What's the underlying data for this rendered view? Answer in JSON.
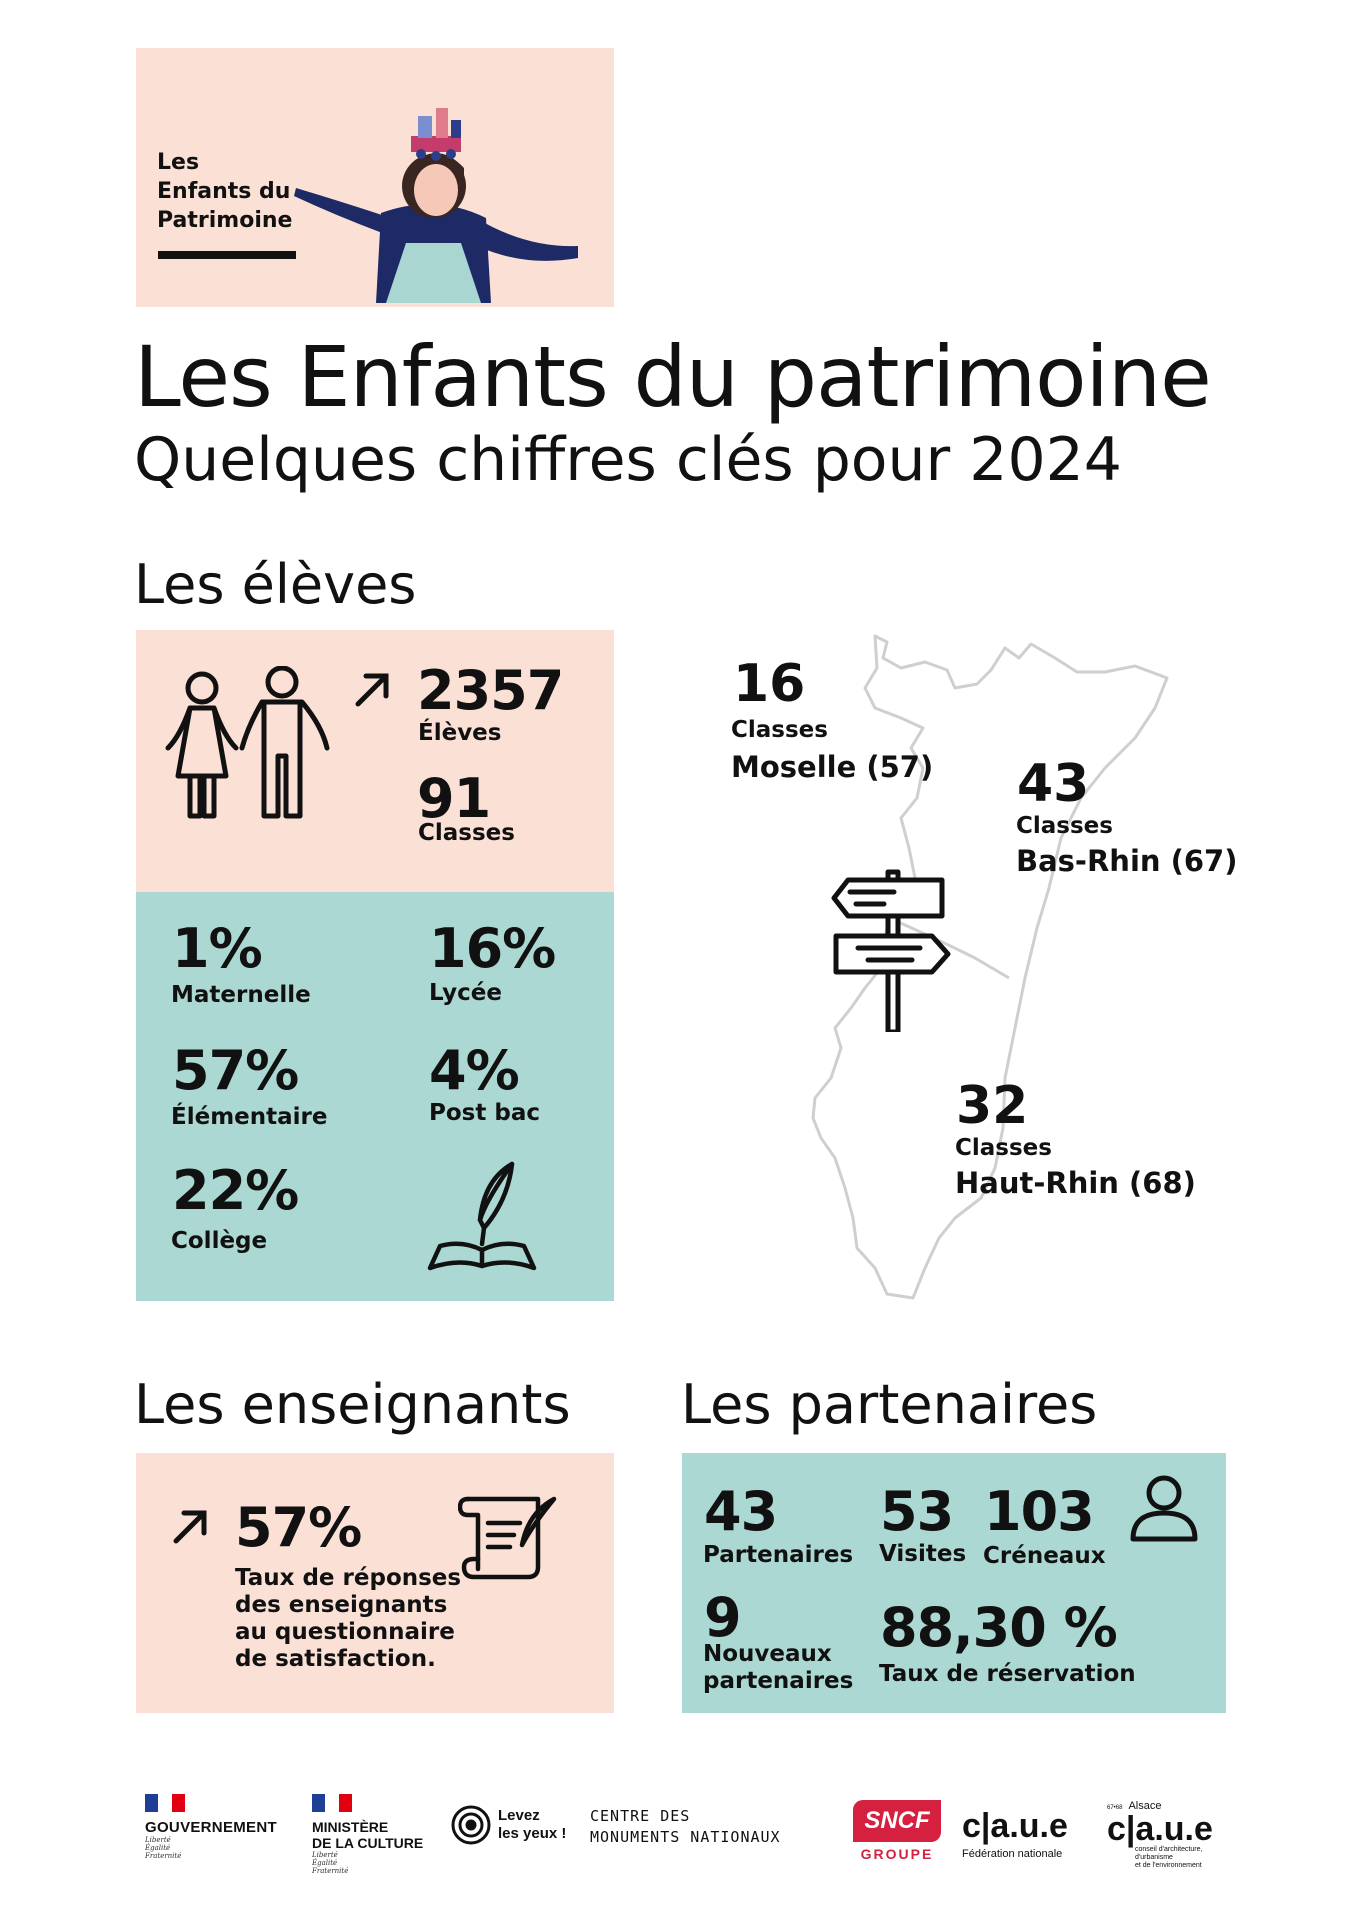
{
  "banner": {
    "line1": "Les",
    "line2": "Enfants du",
    "line3": "Patrimoine"
  },
  "header": {
    "title": "Les Enfants du patrimoine",
    "subtitle": "Quelques chiffres clés pour 2024"
  },
  "eleves": {
    "heading": "Les élèves",
    "students_count": "2357",
    "students_label": "Élèves",
    "classes_count": "91",
    "classes_label": "Classes",
    "levels": [
      {
        "value": "1%",
        "label": "Maternelle"
      },
      {
        "value": "16%",
        "label": "Lycée"
      },
      {
        "value": "57%",
        "label": "Élémentaire"
      },
      {
        "value": "4%",
        "label": "Post bac"
      },
      {
        "value": "22%",
        "label": "Collège"
      }
    ]
  },
  "map": {
    "regions": [
      {
        "count": "16",
        "label": "Classes",
        "name": "Moselle (57)"
      },
      {
        "count": "43",
        "label": "Classes",
        "name": "Bas-Rhin (67)"
      },
      {
        "count": "32",
        "label": "Classes",
        "name": "Haut-Rhin (68)"
      }
    ]
  },
  "enseignants": {
    "heading": "Les enseignants",
    "value": "57%",
    "desc_lines": [
      "Taux de réponses",
      "des enseignants",
      "au questionnaire",
      "de satisfaction."
    ]
  },
  "partenaires": {
    "heading": "Les partenaires",
    "partners_count": "43",
    "partners_label": "Partenaires",
    "visits_count": "53",
    "visits_label": "Visites",
    "slots_count": "103",
    "slots_label": "Créneaux",
    "new_count": "9",
    "new_label_1": "Nouveaux",
    "new_label_2": "partenaires",
    "rate_value": "88,30 %",
    "rate_label": "Taux de réservation"
  },
  "footer": {
    "gouv": {
      "name": "GOUVERNEMENT",
      "motto": [
        "Liberté",
        "Égalité",
        "Fraternité"
      ]
    },
    "ministere": {
      "line1": "MINISTÈRE",
      "line2": "DE LA CULTURE",
      "motto": [
        "Liberté",
        "Égalité",
        "Fraternité"
      ]
    },
    "levez": {
      "line1": "Levez",
      "line2": "les yeux !"
    },
    "cmn": {
      "line1": "CENTRE DES",
      "line2": "MONUMENTS NATIONAUX"
    },
    "sncf": {
      "name": "SNCF",
      "sub": "GROUPE"
    },
    "caue_fed": {
      "name": "c|a.u.e",
      "sub": "Fédération nationale"
    },
    "caue_alsace": {
      "top_small": "67•68",
      "top": "Alsace",
      "name": "c|a.u.e",
      "desc": [
        "conseil d'architecture,",
        "d'urbanisme",
        "et de l'environnement"
      ]
    }
  },
  "colors": {
    "pink": "#fbe0d6",
    "teal": "#abd8d2",
    "text": "#111111",
    "sncf": "#d6203f",
    "marianne_blue": "#1f3f96",
    "marianne_red": "#e1000f"
  }
}
